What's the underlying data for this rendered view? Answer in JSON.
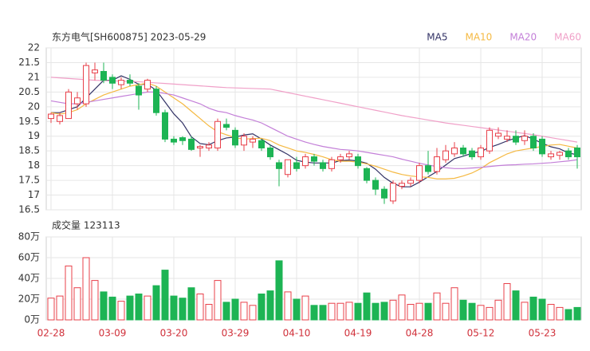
{
  "chart_data": [
    {
      "type": "candlestick",
      "title": "东方电气[SH600875] 2023-05-29",
      "categories": [
        "02-28",
        null,
        null,
        null,
        null,
        null,
        null,
        "03-09",
        null,
        null,
        null,
        null,
        null,
        null,
        "03-20",
        null,
        null,
        null,
        null,
        null,
        null,
        "03-29",
        null,
        null,
        null,
        null,
        null,
        null,
        "04-10",
        null,
        null,
        null,
        null,
        null,
        null,
        "04-19",
        null,
        null,
        null,
        null,
        null,
        null,
        "04-28",
        null,
        null,
        null,
        null,
        null,
        null,
        "05-12",
        null,
        null,
        null,
        null,
        null,
        null,
        "05-23",
        null,
        null,
        null,
        null
      ],
      "open": [
        19.6,
        19.5,
        19.6,
        20.1,
        20.1,
        21.15,
        21.2,
        21.0,
        20.75,
        20.9,
        20.7,
        20.6,
        20.6,
        19.8,
        18.9,
        18.95,
        18.9,
        18.6,
        18.6,
        18.6,
        19.4,
        19.2,
        18.7,
        18.8,
        18.85,
        18.6,
        18.1,
        17.7,
        18.1,
        18.0,
        18.3,
        18.1,
        17.9,
        18.2,
        18.3,
        18.3,
        17.9,
        17.5,
        17.2,
        16.8,
        17.3,
        17.4,
        17.5,
        18.0,
        17.8,
        18.2,
        18.4,
        18.6,
        18.5,
        18.3,
        18.5,
        19.0,
        18.9,
        19.0,
        18.85,
        19.0,
        18.9,
        18.3,
        18.35,
        18.5,
        18.6
      ],
      "high": [
        19.8,
        19.8,
        20.6,
        20.5,
        21.5,
        21.5,
        21.5,
        21.1,
        21.0,
        21.1,
        20.8,
        20.95,
        20.7,
        19.9,
        19.0,
        19.0,
        19.0,
        18.7,
        18.8,
        19.6,
        19.6,
        19.3,
        19.1,
        19.0,
        18.9,
        18.7,
        18.2,
        18.2,
        18.3,
        18.4,
        18.4,
        18.2,
        18.3,
        18.4,
        18.5,
        18.4,
        17.95,
        17.6,
        17.3,
        17.5,
        17.5,
        17.6,
        18.1,
        18.5,
        18.6,
        18.7,
        18.8,
        18.7,
        18.6,
        18.7,
        19.3,
        19.3,
        19.2,
        19.2,
        19.2,
        19.1,
        19.0,
        18.5,
        18.5,
        18.6,
        18.7
      ],
      "low": [
        19.45,
        19.4,
        19.6,
        19.9,
        20.0,
        20.9,
        20.8,
        20.6,
        20.6,
        20.7,
        19.9,
        20.5,
        19.7,
        18.8,
        18.7,
        18.7,
        18.5,
        18.3,
        18.5,
        18.5,
        19.2,
        18.6,
        18.5,
        18.6,
        18.5,
        18.2,
        17.3,
        17.6,
        17.8,
        17.9,
        18.0,
        17.8,
        17.8,
        18.1,
        18.2,
        17.9,
        17.4,
        17.0,
        16.7,
        16.7,
        17.2,
        17.3,
        17.4,
        17.7,
        17.7,
        18.1,
        18.3,
        18.3,
        18.2,
        18.2,
        18.4,
        18.9,
        18.8,
        18.7,
        18.7,
        18.5,
        18.3,
        18.2,
        18.2,
        18.2,
        17.9
      ],
      "close": [
        19.75,
        19.7,
        20.5,
        20.3,
        21.4,
        21.25,
        20.9,
        20.8,
        20.9,
        20.8,
        20.4,
        20.9,
        19.8,
        18.9,
        18.8,
        18.85,
        18.55,
        18.65,
        18.7,
        19.5,
        19.3,
        18.7,
        19.0,
        18.9,
        18.6,
        18.3,
        17.9,
        18.2,
        17.9,
        18.3,
        18.15,
        17.9,
        18.2,
        18.3,
        18.4,
        18.0,
        17.5,
        17.2,
        16.9,
        17.4,
        17.4,
        17.5,
        18.0,
        17.8,
        18.3,
        18.5,
        18.6,
        18.4,
        18.3,
        18.6,
        19.2,
        19.1,
        19.0,
        18.8,
        19.0,
        18.6,
        18.4,
        18.4,
        18.45,
        18.3,
        18.3
      ],
      "up_color": "#e8404a",
      "down_color": "#1db454",
      "series": [
        {
          "name": "MA5",
          "color": "#333366",
          "values": [
            19.8,
            19.8,
            19.9,
            20.0,
            20.3,
            20.6,
            20.9,
            20.9,
            21.05,
            20.93,
            20.76,
            20.76,
            20.56,
            20.16,
            19.76,
            19.45,
            18.98,
            18.75,
            18.71,
            18.85,
            18.94,
            18.97,
            19.04,
            19.08,
            18.9,
            18.7,
            18.54,
            18.38,
            18.18,
            18.12,
            18.09,
            18.09,
            18.09,
            18.17,
            18.19,
            18.16,
            18.08,
            17.88,
            17.6,
            17.4,
            17.28,
            17.28,
            17.44,
            17.62,
            17.8,
            18.02,
            18.24,
            18.32,
            18.42,
            18.48,
            18.62,
            18.72,
            18.84,
            18.94,
            19.02,
            18.9,
            18.76,
            18.64,
            18.57,
            18.43,
            18.37
          ]
        },
        {
          "name": "MA10",
          "color": "#f5b942",
          "values": [
            19.8,
            19.75,
            19.8,
            19.9,
            20.1,
            20.25,
            20.4,
            20.5,
            20.6,
            20.7,
            20.75,
            20.8,
            20.7,
            20.5,
            20.3,
            20.1,
            19.85,
            19.6,
            19.35,
            19.15,
            19.05,
            18.95,
            18.9,
            18.92,
            18.93,
            18.85,
            18.7,
            18.6,
            18.5,
            18.45,
            18.38,
            18.3,
            18.2,
            18.15,
            18.15,
            18.12,
            18.06,
            17.98,
            17.88,
            17.78,
            17.7,
            17.65,
            17.62,
            17.6,
            17.55,
            17.55,
            17.57,
            17.65,
            17.75,
            17.9,
            18.1,
            18.25,
            18.4,
            18.5,
            18.55,
            18.6,
            18.65,
            18.7,
            18.72,
            18.66,
            18.6
          ]
        },
        {
          "name": "MA20",
          "color": "#c37fd8",
          "values": [
            20.2,
            20.15,
            20.1,
            20.1,
            20.15,
            20.2,
            20.25,
            20.3,
            20.35,
            20.4,
            20.45,
            20.5,
            20.5,
            20.45,
            20.4,
            20.3,
            20.2,
            20.1,
            19.95,
            19.85,
            19.8,
            19.7,
            19.62,
            19.55,
            19.45,
            19.3,
            19.15,
            19.0,
            18.9,
            18.8,
            18.72,
            18.65,
            18.6,
            18.55,
            18.53,
            18.5,
            18.45,
            18.4,
            18.35,
            18.3,
            18.22,
            18.15,
            18.08,
            18.02,
            17.97,
            17.93,
            17.9,
            17.9,
            17.92,
            17.94,
            17.97,
            18.0,
            18.02,
            18.03,
            18.05,
            18.06,
            18.08,
            18.1,
            18.13,
            18.16,
            18.2
          ]
        },
        {
          "name": "MA60",
          "color": "#f0a0c8",
          "values": [
            21.0,
            20.98,
            20.96,
            20.94,
            20.92,
            20.9,
            20.89,
            20.88,
            20.87,
            20.86,
            20.85,
            20.83,
            20.81,
            20.79,
            20.77,
            20.75,
            20.73,
            20.71,
            20.69,
            20.67,
            20.65,
            20.64,
            20.63,
            20.62,
            20.61,
            20.6,
            20.54,
            20.48,
            20.42,
            20.36,
            20.3,
            20.24,
            20.18,
            20.12,
            20.06,
            20.0,
            19.94,
            19.88,
            19.82,
            19.76,
            19.7,
            19.65,
            19.6,
            19.55,
            19.5,
            19.45,
            19.41,
            19.37,
            19.33,
            19.29,
            19.25,
            19.21,
            19.17,
            19.13,
            19.09,
            19.05,
            19.0,
            18.95,
            18.9,
            18.85,
            18.8
          ]
        }
      ],
      "ylim": [
        16.5,
        22
      ],
      "yticks": [
        16.5,
        17,
        17.5,
        18,
        18.5,
        19,
        19.5,
        20,
        20.5,
        21,
        21.5,
        22
      ],
      "grid": true,
      "legend": "top-right"
    },
    {
      "type": "bar",
      "title": "成交量 123113",
      "values": [
        21,
        23,
        52,
        31,
        60,
        38,
        27,
        22,
        18,
        23,
        25,
        23,
        33,
        48,
        23,
        21,
        31,
        25,
        15,
        38,
        17,
        20,
        17,
        14,
        25,
        28,
        57,
        27,
        20,
        23,
        14,
        14,
        16,
        16,
        17,
        16,
        26,
        16,
        17,
        19,
        24,
        15,
        16,
        16,
        26,
        16,
        31,
        19,
        16,
        14,
        12,
        19,
        35,
        28,
        17,
        22,
        20,
        15,
        12,
        10,
        12
      ],
      "ylim": [
        0,
        80
      ],
      "yticks": [
        {
          "value": 0,
          "label": "0万"
        },
        {
          "value": 20,
          "label": "20万"
        },
        {
          "value": 40,
          "label": "40万"
        },
        {
          "value": 60,
          "label": "60万"
        },
        {
          "value": 80,
          "label": "80万"
        }
      ],
      "grid": true
    }
  ]
}
